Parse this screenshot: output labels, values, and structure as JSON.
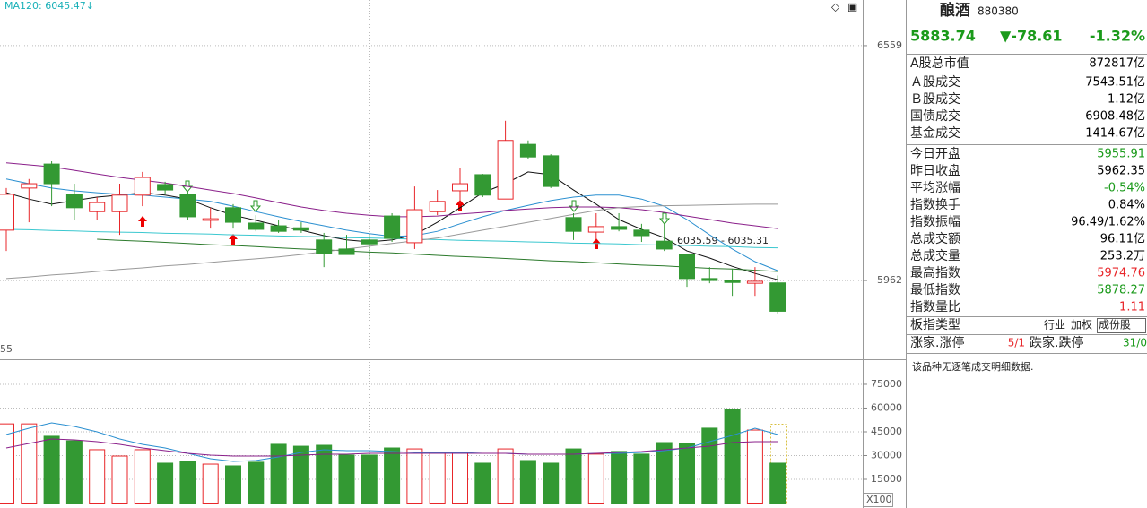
{
  "chart_data": [
    {
      "type": "candlestick",
      "legend_text": "MA120: 6045.47↓",
      "annotations": [
        "6035.59 - 6035.31",
        "55"
      ],
      "categories": [
        null,
        null,
        null,
        null,
        null,
        null,
        null,
        null,
        null,
        null,
        null,
        null,
        null,
        null,
        null,
        null,
        null,
        null,
        null,
        null,
        null,
        null,
        null,
        null,
        null,
        null,
        null,
        null,
        null,
        null,
        null,
        null,
        null,
        null,
        null
      ],
      "open": [
        6090,
        6197,
        6258,
        6181,
        6137,
        6137,
        6179,
        6206,
        6181,
        6115,
        6147,
        6108,
        6101,
        6096,
        6065,
        6042,
        6065,
        6126,
        6058,
        6137,
        6190,
        6231,
        6169,
        6308,
        6279,
        6122,
        6085,
        6099,
        6090,
        6062,
        6028,
        5967,
        5962,
        5955,
        5955.91
      ],
      "close": [
        6181,
        6208,
        6208,
        6147,
        6160,
        6179,
        6224,
        6192,
        6124,
        6119,
        6110,
        6092,
        6087,
        6090,
        6030,
        6028,
        6055,
        6069,
        6142,
        6163,
        6208,
        6179,
        6318,
        6276,
        6201,
        6087,
        6099,
        6092,
        6076,
        6042,
        5967,
        5962,
        5957,
        5960,
        5883.74
      ],
      "high": [
        6197,
        6220,
        6265,
        6208,
        6174,
        6208,
        6238,
        6213,
        6190,
        6147,
        6156,
        6128,
        6117,
        6110,
        6083,
        6078,
        6078,
        6133,
        6201,
        6192,
        6247,
        6233,
        6368,
        6318,
        6283,
        6133,
        6133,
        6133,
        6106,
        6106,
        6030,
        5996,
        5992,
        5996,
        5974.76
      ],
      "low": [
        6037,
        6110,
        6151,
        6117,
        6117,
        6078,
        6151,
        6183,
        6117,
        6094,
        6094,
        6087,
        6083,
        6083,
        5996,
        6028,
        6014,
        6060,
        6042,
        6128,
        6156,
        6174,
        6169,
        6272,
        6197,
        6065,
        6065,
        6087,
        6060,
        6037,
        5946,
        5955,
        5923,
        5923,
        5878.27
      ],
      "up_color": "#e8262a",
      "down_color": "#339933",
      "lines": [
        {
          "color": "#111111",
          "values": [
            6185,
            6169,
            6156,
            6165,
            6174,
            6179,
            6185,
            6179,
            6169,
            6147,
            6128,
            6115,
            6101,
            6090,
            6076,
            6065,
            6060,
            6065,
            6078,
            6110,
            6147,
            6185,
            6208,
            6238,
            6231,
            6192,
            6156,
            6117,
            6092,
            6071,
            6037,
            6019,
            5998,
            5980,
            5964
          ]
        },
        {
          "color": "#2a8fd0",
          "values": [
            6220,
            6208,
            6197,
            6190,
            6185,
            6181,
            6179,
            6174,
            6169,
            6163,
            6151,
            6137,
            6124,
            6112,
            6101,
            6090,
            6081,
            6074,
            6076,
            6087,
            6106,
            6124,
            6140,
            6153,
            6165,
            6174,
            6179,
            6179,
            6169,
            6151,
            6117,
            6078,
            6042,
            6010,
            5987
          ]
        },
        {
          "color": "#8a1f8a",
          "values": [
            6261,
            6256,
            6251,
            6242,
            6233,
            6224,
            6217,
            6210,
            6201,
            6192,
            6183,
            6172,
            6160,
            6149,
            6140,
            6133,
            6128,
            6124,
            6124,
            6126,
            6131,
            6135,
            6140,
            6144,
            6147,
            6149,
            6149,
            6147,
            6142,
            6135,
            6126,
            6117,
            6108,
            6101,
            6094
          ]
        },
        {
          "color": "#3cc8d0",
          "values": [
            6092,
            6091,
            6089,
            6088,
            6086,
            6085,
            6084,
            6082,
            6081,
            6080,
            6078,
            6077,
            6075,
            6074,
            6073,
            6071,
            6070,
            6069,
            6067,
            6066,
            6064,
            6063,
            6062,
            6060,
            6059,
            6057,
            6056,
            6055,
            6053,
            6052,
            6051,
            6049,
            6048,
            6046,
            6045
          ]
        },
        {
          "color": "#2c7a2c",
          "values": [
            null,
            null,
            null,
            null,
            6067,
            6064,
            6062,
            6059,
            6056,
            6053,
            6051,
            6048,
            6045,
            6042,
            6040,
            6037,
            6034,
            6032,
            6029,
            6026,
            6023,
            6021,
            6018,
            6015,
            6012,
            6010,
            6007,
            6004,
            6001,
            5999,
            5996,
            5993,
            5991,
            5988,
            5985
          ]
        },
        {
          "color": "#999999",
          "values": [
            5967,
            5971,
            5976,
            5980,
            5985,
            5990,
            5994,
            5999,
            6003,
            6008,
            6013,
            6017,
            6022,
            6028,
            6035,
            6042,
            6049,
            6056,
            6063,
            6070,
            6080,
            6090,
            6100,
            6110,
            6120,
            6130,
            6140,
            6147,
            6150,
            6152,
            6153,
            6154,
            6155,
            6156,
            6156
          ]
        }
      ],
      "ylim": [
        5764,
        6675
      ],
      "yticks": [
        5962,
        6559
      ],
      "grid": true
    },
    {
      "type": "bar",
      "unit_label": "X100",
      "values": [
        50000,
        50000,
        42200,
        39300,
        33700,
        29700,
        33700,
        25200,
        26300,
        24600,
        23500,
        25800,
        37100,
        35900,
        36500,
        30300,
        30300,
        34800,
        34200,
        31400,
        31400,
        25200,
        34200,
        26900,
        25200,
        34200,
        30900,
        32600,
        30900,
        38200,
        37600,
        47300,
        59200,
        46100,
        25200
      ],
      "lines": [
        {
          "color": "#2a8fd0",
          "values": [
            43300,
            47260,
            50660,
            48390,
            45000,
            40470,
            37070,
            34810,
            31410,
            28020,
            26320,
            26890,
            29150,
            31980,
            33680,
            33110,
            33110,
            32550,
            31980,
            31980,
            31980,
            31410,
            31410,
            30850,
            30850,
            30850,
            31410,
            31410,
            31980,
            33110,
            34810,
            38770,
            42730,
            47260,
            43300
          ]
        },
        {
          "color": "#8a1f8a",
          "values": [
            34810,
            37640,
            40470,
            39900,
            38770,
            37070,
            34810,
            33110,
            31410,
            30280,
            29710,
            29710,
            29710,
            30280,
            30850,
            30850,
            31410,
            31410,
            31410,
            31410,
            31410,
            31410,
            31410,
            30850,
            30850,
            30850,
            31410,
            31980,
            32550,
            33680,
            34810,
            35940,
            38200,
            38770,
            38770
          ]
        }
      ],
      "ylim": [
        0,
        89700
      ],
      "yticks": [
        15000,
        30000,
        45000,
        60000,
        75000
      ],
      "grid": true
    }
  ],
  "quote_panel": {
    "name": "酿酒",
    "code": "880380",
    "price": "5883.74",
    "change": "▼-78.61",
    "change_pct": "-1.32%",
    "rows": [
      {
        "label": "A股总市值",
        "value": "872817亿",
        "color": "#000000"
      },
      {
        "label": "Ａ股成交",
        "value": "7543.51亿",
        "color": "#000000"
      },
      {
        "label": "Ｂ股成交",
        "value": "1.12亿",
        "color": "#000000"
      },
      {
        "label": "国债成交",
        "value": "6908.48亿",
        "color": "#000000"
      },
      {
        "label": "基金成交",
        "value": "1414.67亿",
        "color": "#000000"
      },
      {
        "label": "今日开盘",
        "value": "5955.91",
        "color": "#1a9a1a"
      },
      {
        "label": "昨日收盘",
        "value": "5962.35",
        "color": "#000000"
      },
      {
        "label": "平均涨幅",
        "value": "-0.54%",
        "color": "#1a9a1a"
      },
      {
        "label": "指数换手",
        "value": "0.84%",
        "color": "#000000"
      },
      {
        "label": "指数振幅",
        "value": "96.49/1.62%",
        "color": "#000000"
      },
      {
        "label": "总成交额",
        "value": "96.11亿",
        "color": "#000000"
      },
      {
        "label": "总成交量",
        "value": "253.2万",
        "color": "#000000"
      },
      {
        "label": "最高指数",
        "value": "5974.76",
        "color": "#e8262a"
      },
      {
        "label": "最低指数",
        "value": "5878.27",
        "color": "#1a9a1a"
      },
      {
        "label": "指数量比",
        "value": "1.11",
        "color": "#e8262a"
      }
    ],
    "type_row": {
      "label": "板指类型",
      "options": [
        "行业",
        "加权",
        "成份股"
      ]
    },
    "breadth_row": {
      "up_label": "涨家.涨停",
      "up_value": "5/1",
      "down_label": "跌家.跌停",
      "down_value": "31/0"
    },
    "note": "该品种无逐笔成交明细数据."
  }
}
